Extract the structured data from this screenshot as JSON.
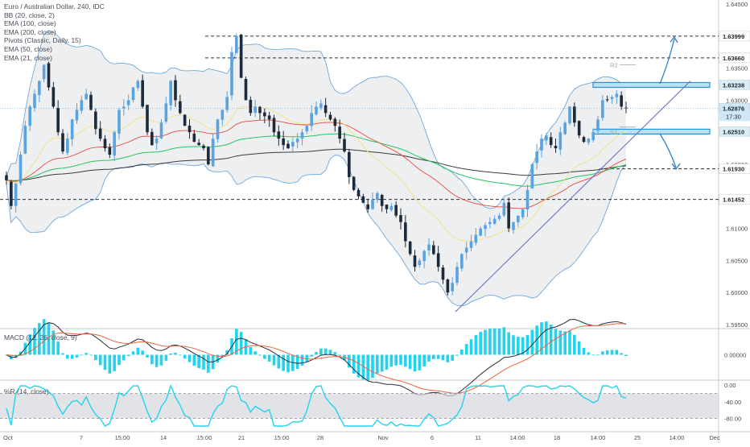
{
  "chart_data": [
    {
      "type": "candlestick",
      "title": "Euro / Australian Dollar, 240, IDC",
      "indicators": [
        "BB (20, close, 2)",
        "EMA (100, close)",
        "EMA (200, close)",
        "Pivots (Classic, Daily, 15)",
        "EMA (50, close)",
        "EMA (21, close)"
      ],
      "ylim": [
        1.595,
        1.645
      ],
      "y_ticks": [
        "1.64500",
        "1.64000",
        "1.63500",
        "1.63000",
        "1.62500",
        "1.62000",
        "1.61500",
        "1.61000",
        "1.60500",
        "1.60000",
        "1.59500"
      ],
      "x_ticks": [
        "Oct",
        "7",
        "15:00",
        "14",
        "15:00",
        "21",
        "15:00",
        "28",
        "Nov",
        "6",
        "11",
        "14:00",
        "18",
        "14:00",
        "25",
        "14:00",
        "Dec"
      ],
      "price_labels": [
        "1.63999",
        "1.63660",
        "1.63238",
        "1.62876",
        "1.62510",
        "1.61930",
        "1.61452"
      ],
      "last_price": "1.62876",
      "countdown": "17:30",
      "pivot_labels": [
        "R2",
        "S2"
      ],
      "horizontal_levels": [
        1.63999,
        1.6366,
        1.6193,
        1.61452
      ],
      "zones": [
        1.63238,
        1.6251
      ],
      "trendline": {
        "start": [
          1.597
        ],
        "end": [
          1.633
        ]
      },
      "price_path": [
        1.6175,
        1.6135,
        1.617,
        1.6215,
        1.626,
        1.629,
        1.631,
        1.633,
        1.6355,
        1.632,
        1.629,
        1.625,
        1.622,
        1.624,
        1.627,
        1.6285,
        1.63,
        1.631,
        1.6285,
        1.6255,
        1.624,
        1.6225,
        1.6215,
        1.625,
        1.6285,
        1.629,
        1.63,
        1.632,
        1.633,
        1.629,
        1.625,
        1.623,
        1.624,
        1.6265,
        1.6295,
        1.633,
        1.63,
        1.628,
        1.626,
        1.625,
        1.6235,
        1.623,
        1.6225,
        1.62,
        1.624,
        1.627,
        1.6285,
        1.6305,
        1.6375,
        1.64,
        1.6335,
        1.63,
        1.628,
        1.629,
        1.628,
        1.6275,
        1.627,
        1.625,
        1.624,
        1.623,
        1.6225,
        1.6235,
        1.624,
        1.625,
        1.626,
        1.628,
        1.629,
        1.6295,
        1.628,
        1.627,
        1.626,
        1.624,
        1.622,
        1.618,
        1.616,
        1.615,
        1.614,
        1.613,
        1.6145,
        1.6155,
        1.6135,
        1.613,
        1.6135,
        1.612,
        1.611,
        1.608,
        1.606,
        1.604,
        1.605,
        1.6065,
        1.6075,
        1.606,
        1.604,
        1.602,
        1.6,
        1.6015,
        1.604,
        1.606,
        1.607,
        1.608,
        1.609,
        1.61,
        1.6105,
        1.611,
        1.6115,
        1.612,
        1.614,
        1.61,
        1.611,
        1.612,
        1.613,
        1.616,
        1.62,
        1.622,
        1.624,
        1.6245,
        1.623,
        1.6225,
        1.625,
        1.6265,
        1.629,
        1.6265,
        1.6245,
        1.6235,
        1.624,
        1.625,
        1.627,
        1.63,
        1.63,
        1.6305,
        1.631,
        1.629,
        1.6288
      ],
      "macd": {
        "label": "MACD (12, 26, close, 9)",
        "ylim": [
          -0.0028,
          0.0028
        ],
        "y_ticks": [
          "0.00000"
        ]
      },
      "williams_r": {
        "label": "%R (14, close)",
        "ylim": [
          -100,
          0
        ],
        "y_ticks": [
          "0.00",
          "-40.00",
          "-80.00"
        ]
      }
    }
  ]
}
